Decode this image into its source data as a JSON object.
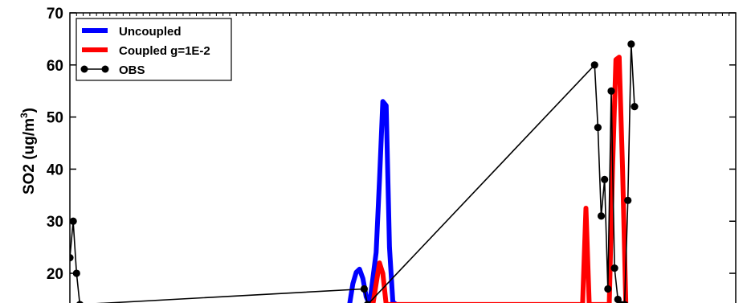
{
  "chart_data": {
    "type": "line",
    "title": "",
    "xlabel": "",
    "ylabel": "SO2 (ug/m",
    "ylabel_sup": "3",
    "ylabel_end": ")",
    "ylim": [
      14.3,
      70
    ],
    "xlim": [
      0,
      100
    ],
    "yticks": [
      20,
      30,
      40,
      50,
      60,
      70
    ],
    "legend_position": "top-left",
    "series": [
      {
        "name": "Uncoupled",
        "color": "#0000ff",
        "style": "thick-line",
        "x": [
          42.0,
          42.5,
          43.0,
          43.5,
          44.0,
          44.5,
          45.0,
          45.5,
          46.0,
          46.5,
          47.0,
          47.5,
          48.0,
          48.5,
          49.0
        ],
        "y": [
          14.0,
          18.0,
          20.2,
          20.8,
          19.0,
          15.5,
          14.0,
          19.0,
          24.0,
          38.0,
          53.0,
          52.2,
          25.0,
          14.5,
          14.0
        ]
      },
      {
        "name": "Coupled g=1E-2",
        "color": "#ff0000",
        "style": "thick-line",
        "x": [
          45.5,
          46.0,
          46.5,
          47.0,
          47.5,
          77.0,
          77.5,
          78.0,
          81.0,
          81.5,
          82.0,
          82.5,
          83.0,
          83.5
        ],
        "y": [
          14.0,
          18.0,
          22.0,
          20.0,
          14.0,
          14.0,
          32.5,
          14.0,
          14.0,
          40.0,
          61.0,
          61.5,
          40.0,
          14.0
        ]
      },
      {
        "name": "OBS",
        "color": "#000000",
        "style": "line-with-dots",
        "x": [
          0.0,
          0.5,
          1.0,
          1.5,
          44.2,
          44.7,
          78.8,
          79.3,
          79.8,
          80.3,
          80.8,
          81.3,
          81.8,
          82.3,
          82.8,
          83.3,
          83.8,
          84.3,
          84.8
        ],
        "y": [
          23.0,
          30.0,
          20.0,
          14.0,
          17.0,
          14.0,
          60.0,
          48.0,
          31.0,
          38.0,
          17.0,
          55.0,
          21.0,
          15.0,
          14.0,
          14.0,
          34.0,
          64.0,
          52.0
        ]
      }
    ]
  }
}
